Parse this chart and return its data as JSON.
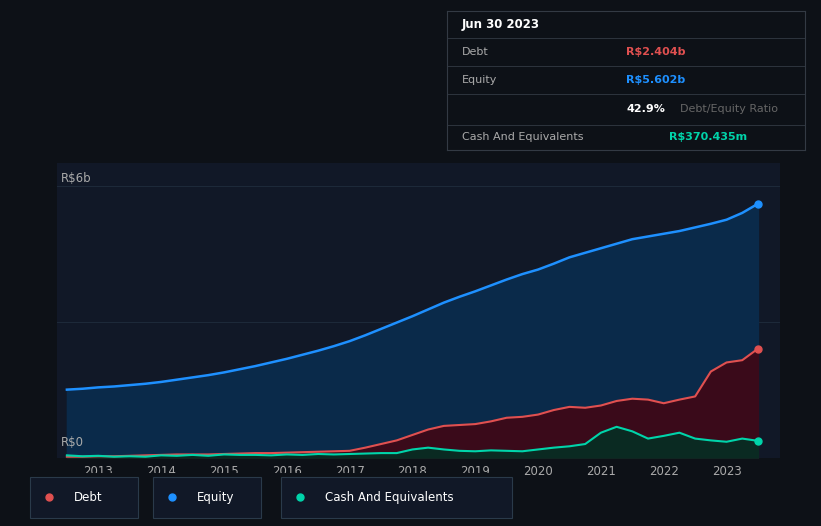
{
  "background_color": "#0d1117",
  "chart_bg": "#111827",
  "ylabel": "R$6b",
  "y0label": "R$0",
  "equity_color": "#1e90ff",
  "debt_color": "#e05050",
  "cash_color": "#00d4aa",
  "equity_fill": "#0a2a4a",
  "debt_fill": "#3a0a1a",
  "cash_fill": "#0a2a22",
  "grid_color": "#1e2a3a",
  "text_color": "#aaaaaa",
  "legend_bg": "#111827",
  "legend_border": "#2a3a4a",
  "tooltip_bg": "#0d1117",
  "tooltip_border": "#333a44",
  "debt_label_color": "#e05050",
  "equity_label_color": "#1e90ff",
  "cash_label_color": "#00d4aa",
  "ratio_highlight_color": "#ffffff",
  "ratio_dim_color": "#666666",
  "ylim_max": 6.5,
  "xlim_min": 2012.35,
  "xlim_max": 2023.85,
  "x_years": [
    2012.5,
    2012.75,
    2013.0,
    2013.25,
    2013.5,
    2013.75,
    2014.0,
    2014.25,
    2014.5,
    2014.75,
    2015.0,
    2015.25,
    2015.5,
    2015.75,
    2016.0,
    2016.25,
    2016.5,
    2016.75,
    2017.0,
    2017.25,
    2017.5,
    2017.75,
    2018.0,
    2018.25,
    2018.5,
    2018.75,
    2019.0,
    2019.25,
    2019.5,
    2019.75,
    2020.0,
    2020.25,
    2020.5,
    2020.75,
    2021.0,
    2021.25,
    2021.5,
    2021.75,
    2022.0,
    2022.25,
    2022.5,
    2022.75,
    2023.0,
    2023.25,
    2023.5
  ],
  "equity": [
    1.5,
    1.52,
    1.55,
    1.57,
    1.6,
    1.63,
    1.67,
    1.72,
    1.77,
    1.82,
    1.88,
    1.95,
    2.02,
    2.1,
    2.18,
    2.27,
    2.36,
    2.46,
    2.57,
    2.7,
    2.84,
    2.98,
    3.12,
    3.27,
    3.42,
    3.55,
    3.67,
    3.8,
    3.93,
    4.05,
    4.15,
    4.28,
    4.42,
    4.52,
    4.62,
    4.72,
    4.82,
    4.88,
    4.94,
    5.0,
    5.08,
    5.16,
    5.25,
    5.4,
    5.602
  ],
  "debt": [
    0.02,
    0.02,
    0.03,
    0.03,
    0.04,
    0.05,
    0.06,
    0.07,
    0.07,
    0.07,
    0.08,
    0.09,
    0.1,
    0.1,
    0.11,
    0.12,
    0.13,
    0.14,
    0.15,
    0.22,
    0.3,
    0.38,
    0.5,
    0.62,
    0.7,
    0.72,
    0.74,
    0.8,
    0.88,
    0.9,
    0.95,
    1.05,
    1.12,
    1.1,
    1.15,
    1.25,
    1.3,
    1.28,
    1.2,
    1.28,
    1.35,
    1.9,
    2.1,
    2.15,
    2.404
  ],
  "cash": [
    0.05,
    0.03,
    0.04,
    0.02,
    0.03,
    0.02,
    0.05,
    0.04,
    0.06,
    0.04,
    0.07,
    0.06,
    0.06,
    0.05,
    0.07,
    0.06,
    0.08,
    0.07,
    0.08,
    0.09,
    0.1,
    0.1,
    0.18,
    0.22,
    0.18,
    0.15,
    0.14,
    0.16,
    0.15,
    0.14,
    0.18,
    0.22,
    0.25,
    0.3,
    0.55,
    0.68,
    0.58,
    0.42,
    0.48,
    0.55,
    0.42,
    0.38,
    0.35,
    0.42,
    0.37
  ],
  "tooltip_title": "Jun 30 2023",
  "tooltip_debt": "R$2.404b",
  "tooltip_equity": "R$5.602b",
  "tooltip_ratio": "42.9%",
  "tooltip_ratio_label": "Debt/Equity Ratio",
  "tooltip_cash": "R$370.435m",
  "x_tick_labels": [
    "2013",
    "2014",
    "2015",
    "2016",
    "2017",
    "2018",
    "2019",
    "2020",
    "2021",
    "2022",
    "2023"
  ],
  "x_tick_positions": [
    2013,
    2014,
    2015,
    2016,
    2017,
    2018,
    2019,
    2020,
    2021,
    2022,
    2023
  ]
}
